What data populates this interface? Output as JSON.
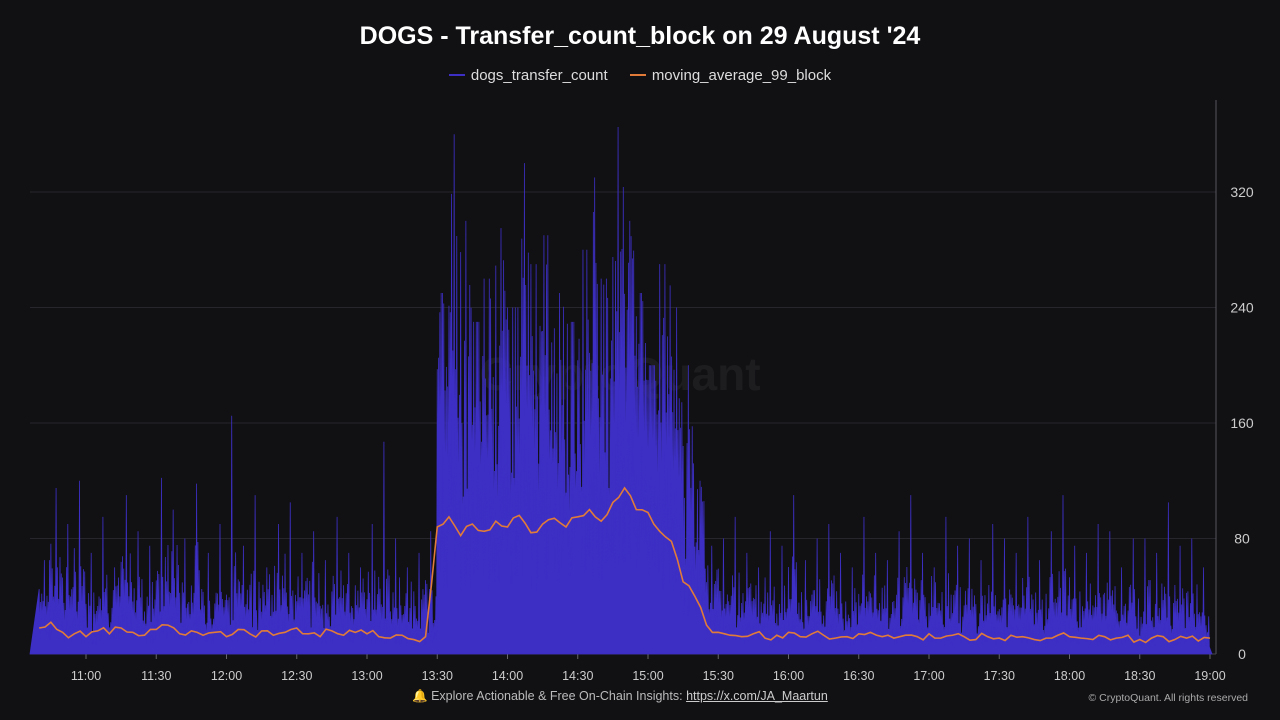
{
  "chart_data": {
    "type": "line",
    "title": "DOGS - Transfer_count_block on 29 August '24",
    "x": [
      "10:40",
      "10:45",
      "10:50",
      "10:55",
      "11:00",
      "11:05",
      "11:10",
      "11:15",
      "11:20",
      "11:25",
      "11:30",
      "11:35",
      "11:40",
      "11:45",
      "11:50",
      "11:55",
      "12:00",
      "12:05",
      "12:10",
      "12:15",
      "12:20",
      "12:25",
      "12:30",
      "12:35",
      "12:40",
      "12:45",
      "12:50",
      "12:55",
      "13:00",
      "13:05",
      "13:10",
      "13:15",
      "13:20",
      "13:25",
      "13:30",
      "13:35",
      "13:40",
      "13:45",
      "13:50",
      "13:55",
      "14:00",
      "14:05",
      "14:10",
      "14:15",
      "14:20",
      "14:25",
      "14:30",
      "14:35",
      "14:40",
      "14:45",
      "14:50",
      "14:55",
      "15:00",
      "15:05",
      "15:10",
      "15:15",
      "15:20",
      "15:25",
      "15:30",
      "15:35",
      "15:40",
      "15:45",
      "15:50",
      "15:55",
      "16:00",
      "16:05",
      "16:10",
      "16:15",
      "16:20",
      "16:25",
      "16:30",
      "16:35",
      "16:40",
      "16:45",
      "16:50",
      "16:55",
      "17:00",
      "17:05",
      "17:10",
      "17:15",
      "17:20",
      "17:25",
      "17:30",
      "17:35",
      "17:40",
      "17:45",
      "17:50",
      "17:55",
      "18:00",
      "18:05",
      "18:10",
      "18:15",
      "18:20",
      "18:25",
      "18:30",
      "18:35",
      "18:40",
      "18:45",
      "18:50",
      "18:55",
      "19:00"
    ],
    "series": [
      {
        "name": "dogs_transfer_count",
        "color": "#3d2fc4",
        "values": [
          65,
          115,
          90,
          120,
          70,
          95,
          60,
          110,
          85,
          75,
          122,
          100,
          80,
          118,
          70,
          90,
          165,
          75,
          110,
          60,
          90,
          105,
          70,
          85,
          65,
          95,
          70,
          60,
          90,
          147,
          80,
          60,
          70,
          85,
          250,
          360,
          300,
          230,
          260,
          295,
          240,
          340,
          270,
          290,
          250,
          230,
          280,
          330,
          260,
          365,
          300,
          250,
          200,
          270,
          240,
          200,
          120,
          75,
          80,
          95,
          70,
          60,
          85,
          75,
          110,
          65,
          80,
          90,
          70,
          60,
          95,
          70,
          65,
          85,
          110,
          70,
          60,
          95,
          75,
          80,
          65,
          90,
          80,
          70,
          95,
          65,
          85,
          110,
          75,
          70,
          90,
          85,
          60,
          80,
          80,
          70,
          105,
          75,
          80,
          60,
          70
        ]
      },
      {
        "name": "moving_average_99_block",
        "color": "#e07b39",
        "values": [
          18,
          22,
          15,
          14,
          12,
          16,
          14,
          18,
          15,
          13,
          17,
          20,
          14,
          16,
          13,
          15,
          12,
          17,
          14,
          16,
          13,
          15,
          18,
          14,
          12,
          16,
          13,
          15,
          14,
          12,
          11,
          13,
          10,
          12,
          88,
          95,
          82,
          90,
          85,
          92,
          88,
          96,
          84,
          90,
          94,
          88,
          95,
          100,
          92,
          105,
          115,
          100,
          98,
          85,
          78,
          50,
          40,
          20,
          15,
          13,
          12,
          14,
          11,
          13,
          15,
          12,
          14,
          13,
          11,
          12,
          14,
          15,
          12,
          11,
          13,
          12,
          14,
          11,
          13,
          12,
          10,
          12,
          11,
          13,
          12,
          10,
          11,
          13,
          12,
          11,
          10,
          12,
          11,
          13,
          10,
          11,
          12,
          10,
          11,
          9,
          11
        ]
      }
    ],
    "x_ticks": [
      "11:00",
      "11:30",
      "12:00",
      "12:30",
      "13:00",
      "13:30",
      "14:00",
      "14:30",
      "15:00",
      "15:30",
      "16:00",
      "16:30",
      "17:00",
      "17:30",
      "18:00",
      "18:30",
      "19:00"
    ],
    "y_ticks": [
      "0",
      "80",
      "160",
      "240",
      "320"
    ],
    "ylim": [
      0,
      383
    ],
    "y_axis_side": "right",
    "grid": true,
    "legend": "top-center"
  },
  "watermark": "CryptoQuant",
  "footer": {
    "text": "Explore Actionable & Free On-Chain Insights: ",
    "link": "https://x.com/JA_Maartun",
    "copyright": "© CryptoQuant. All rights reserved"
  }
}
